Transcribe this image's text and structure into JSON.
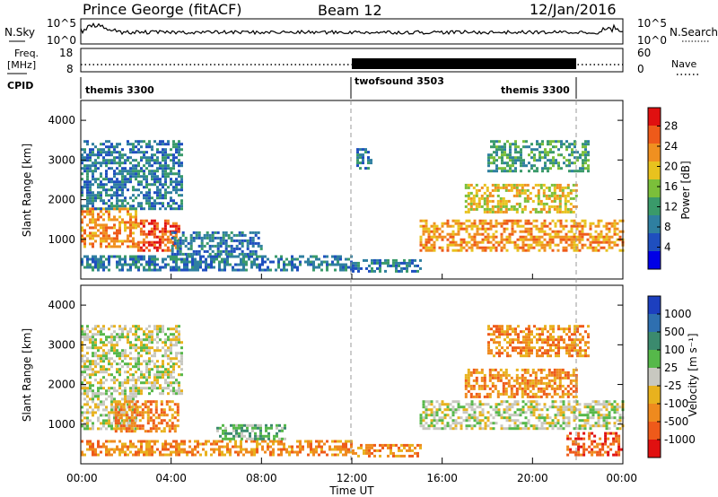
{
  "header": {
    "station": "Prince George (fitACF)",
    "beam": "Beam 12",
    "date": "12/Jan/2016"
  },
  "noise_panel": {
    "left_label": "N.Sky",
    "right_label": "N.Search",
    "left_ticks": [
      "10^5",
      "10^0"
    ],
    "right_ticks": [
      "10^5",
      "10^0"
    ]
  },
  "freq_panel": {
    "left_label_top": "Freq.",
    "left_label_unit": "[MHz]",
    "left_ticks": [
      "18",
      "8"
    ],
    "right_label": "Nave",
    "right_ticks": [
      "60",
      "0"
    ]
  },
  "cpid_panel": {
    "label": "CPID",
    "segments": [
      "themis 3300",
      "twofsound 3503",
      "themis 3300"
    ]
  },
  "power_panel": {
    "ylabel": "Slant Range [km]",
    "yticks": [
      "4000",
      "3000",
      "2000",
      "1000"
    ],
    "colorbar_label": "Power [dB]",
    "colorbar_ticks": [
      "28",
      "24",
      "20",
      "16",
      "12",
      "8",
      "4"
    ]
  },
  "velocity_panel": {
    "ylabel": "Slant Range [km]",
    "yticks": [
      "4000",
      "3000",
      "2000",
      "1000"
    ],
    "colorbar_label": "Velocity [m s⁻¹]",
    "colorbar_ticks": [
      "1000",
      "500",
      "100",
      "25",
      "-25",
      "-100",
      "-500",
      "-1000"
    ]
  },
  "xaxis": {
    "ticks": [
      "00:00",
      "04:00",
      "08:00",
      "12:00",
      "16:00",
      "20:00",
      "00:00"
    ],
    "label": "Time UT"
  },
  "colors": {
    "power_scale": [
      "#0000e6",
      "#1f4fbf",
      "#2f7fa0",
      "#3a9a6a",
      "#7bbf3a",
      "#e8c21e",
      "#f09020",
      "#ee5a1a",
      "#e01010"
    ],
    "velocity_scale": [
      "#1c3fbf",
      "#2e6fb0",
      "#3b8a6e",
      "#56b84a",
      "#c8c8c0",
      "#e8b21e",
      "#ef8a1e",
      "#ee5a1a",
      "#e01010"
    ]
  },
  "chart_data": [
    {
      "type": "heatmap",
      "name": "power",
      "x_range_hours": [
        0,
        24
      ],
      "ylim": [
        0,
        4500
      ],
      "units": "dB",
      "value_range": [
        0,
        30
      ],
      "features": [
        {
          "t_start": 0.0,
          "t_end": 2.5,
          "range_min": 800,
          "range_max": 1800,
          "level": 22
        },
        {
          "t_start": 2.5,
          "t_end": 4.3,
          "range_min": 700,
          "range_max": 1500,
          "level": 26
        },
        {
          "t_start": 0.0,
          "t_end": 4.5,
          "range_min": 1800,
          "range_max": 3500,
          "level": 8
        },
        {
          "t_start": 0.0,
          "t_end": 12.0,
          "range_min": 200,
          "range_max": 600,
          "level": 6
        },
        {
          "t_start": 4.0,
          "t_end": 8.0,
          "range_min": 600,
          "range_max": 1200,
          "level": 6
        },
        {
          "t_start": 12.0,
          "t_end": 15.0,
          "range_min": 200,
          "range_max": 500,
          "level": 6
        },
        {
          "t_start": 12.2,
          "t_end": 12.8,
          "range_min": 2700,
          "range_max": 3300,
          "level": 8
        },
        {
          "t_start": 15.0,
          "t_end": 24.0,
          "range_min": 700,
          "range_max": 1500,
          "level": 22
        },
        {
          "t_start": 17.0,
          "t_end": 22.0,
          "range_min": 1700,
          "range_max": 2400,
          "level": 18
        },
        {
          "t_start": 18.0,
          "t_end": 22.5,
          "range_min": 2700,
          "range_max": 3500,
          "level": 12
        }
      ]
    },
    {
      "type": "heatmap",
      "name": "velocity",
      "x_range_hours": [
        0,
        24
      ],
      "ylim": [
        0,
        4500
      ],
      "units": "m s^-1",
      "value_range": [
        -1000,
        1000
      ],
      "features": [
        {
          "t_start": 0.0,
          "t_end": 2.5,
          "range_min": 900,
          "range_max": 1800,
          "level": 0
        },
        {
          "t_start": 1.5,
          "t_end": 4.3,
          "range_min": 800,
          "range_max": 1600,
          "level": -300
        },
        {
          "t_start": 0.0,
          "t_end": 4.5,
          "range_min": 1800,
          "range_max": 3500,
          "level": 0
        },
        {
          "t_start": 0.0,
          "t_end": 12.0,
          "range_min": 200,
          "range_max": 600,
          "level": -100
        },
        {
          "t_start": 6.0,
          "t_end": 9.0,
          "range_min": 600,
          "range_max": 1000,
          "level": 50
        },
        {
          "t_start": 12.0,
          "t_end": 15.0,
          "range_min": 200,
          "range_max": 500,
          "level": -100
        },
        {
          "t_start": 15.0,
          "t_end": 24.0,
          "range_min": 900,
          "range_max": 1600,
          "level": 0
        },
        {
          "t_start": 17.0,
          "t_end": 22.0,
          "range_min": 1700,
          "range_max": 2400,
          "level": -300
        },
        {
          "t_start": 18.0,
          "t_end": 22.5,
          "range_min": 2700,
          "range_max": 3500,
          "level": -200
        },
        {
          "t_start": 21.5,
          "t_end": 24.0,
          "range_min": 200,
          "range_max": 800,
          "level": -400
        }
      ]
    }
  ]
}
